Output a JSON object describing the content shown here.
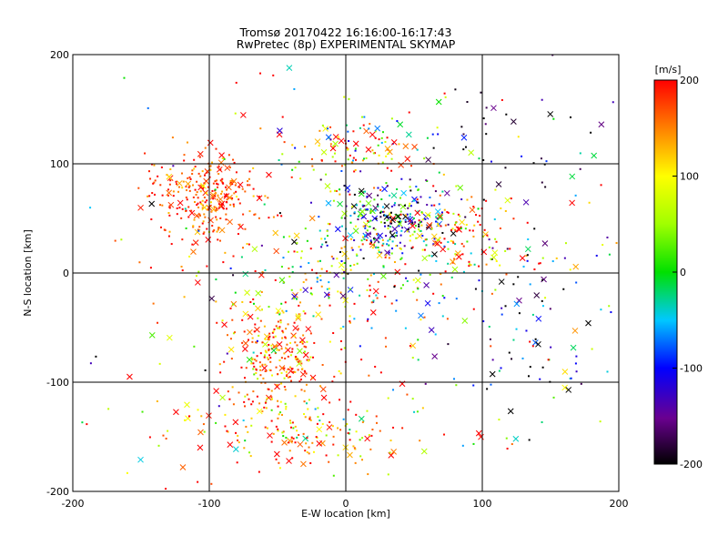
{
  "chart_data": {
    "type": "scatter",
    "title": "Tromsø 20170422 16:16:00-16:17:43",
    "subtitle": "RwPretec (8p) EXPERIMENTAL SKYMAP",
    "xlabel": "E-W location [km]",
    "ylabel": "N-S location [km]",
    "xlim": [
      -200,
      200
    ],
    "ylim": [
      -200,
      200
    ],
    "x_ticks": [
      "-200",
      "-100",
      "0",
      "100",
      "200"
    ],
    "y_ticks": [
      "-200",
      "-100",
      "0",
      "100",
      "200"
    ],
    "grid": true,
    "colorbar": {
      "label": "[m/s]",
      "range": [
        -200,
        200
      ],
      "ticks": [
        "200",
        "100",
        "0",
        "-100",
        "-200"
      ],
      "colormap": "rainbow (black-purple-blue-cyan-green-yellow-orange-red)"
    },
    "marker_types": [
      "dot",
      "cross"
    ],
    "clusters": [
      {
        "name": "northwest",
        "cx": -100,
        "cy": 70,
        "sx": 20,
        "sy": 20,
        "n": 280,
        "mean_v": 175,
        "sd_v": 35
      },
      {
        "name": "center-north",
        "cx": 30,
        "cy": 50,
        "sx": 26,
        "sy": 16,
        "n": 260,
        "mean_v": -60,
        "sd_v": 110
      },
      {
        "name": "east-mid",
        "cx": 80,
        "cy": 35,
        "sx": 28,
        "sy": 18,
        "n": 120,
        "mean_v": 140,
        "sd_v": 90
      },
      {
        "name": "north",
        "cx": 10,
        "cy": 115,
        "sx": 30,
        "sy": 14,
        "n": 110,
        "mean_v": 110,
        "sd_v": 120
      },
      {
        "name": "center",
        "cx": -10,
        "cy": 0,
        "sx": 35,
        "sy": 25,
        "n": 170,
        "mean_v": 60,
        "sd_v": 130
      },
      {
        "name": "southwest",
        "cx": -50,
        "cy": -75,
        "sx": 18,
        "sy": 22,
        "n": 230,
        "mean_v": 165,
        "sd_v": 55
      },
      {
        "name": "south",
        "cx": -35,
        "cy": -145,
        "sx": 40,
        "sy": 22,
        "n": 190,
        "mean_v": 150,
        "sd_v": 70
      },
      {
        "name": "east-far",
        "cx": 140,
        "cy": -40,
        "sx": 35,
        "sy": 60,
        "n": 110,
        "mean_v": -90,
        "sd_v": 130
      },
      {
        "name": "northeast",
        "cx": 120,
        "cy": 130,
        "sx": 40,
        "sy": 30,
        "n": 40,
        "mean_v": -170,
        "sd_v": 50
      },
      {
        "name": "background",
        "cx": 0,
        "cy": 0,
        "sx": 110,
        "sy": 110,
        "n": 280,
        "mean_v": 80,
        "sd_v": 140
      }
    ]
  }
}
